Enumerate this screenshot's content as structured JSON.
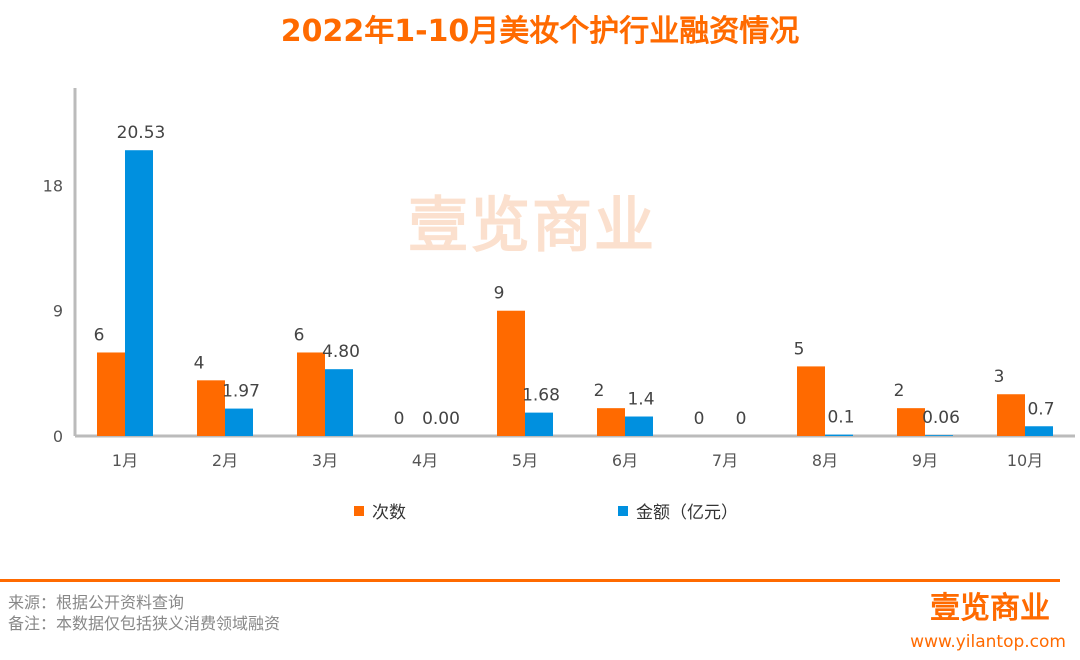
{
  "chart_data": {
    "type": "bar",
    "title": "2022年1-10月美妆个护行业融资情况",
    "categories": [
      "1月",
      "2月",
      "3月",
      "4月",
      "5月",
      "6月",
      "7月",
      "8月",
      "9月",
      "10月"
    ],
    "series": [
      {
        "name": "次数",
        "color": "#ff6a00",
        "values": [
          6,
          4,
          6,
          0,
          9,
          2,
          0,
          5,
          2,
          3
        ],
        "labels": [
          "6",
          "4",
          "6",
          "0",
          "9",
          "2",
          "0",
          "5",
          "2",
          "3"
        ]
      },
      {
        "name": "金额（亿元）",
        "color": "#0090df",
        "values": [
          20.53,
          1.97,
          4.8,
          0.0,
          1.68,
          1.4,
          0,
          0.1,
          0.06,
          0.7
        ],
        "labels": [
          "20.53",
          "1.97",
          "4.80",
          "0.00",
          "1.68",
          "1.4",
          "0",
          "0.1",
          "0.06",
          "0.7"
        ]
      }
    ],
    "yticks": [
      "0",
      "9",
      "18"
    ],
    "ylim": [
      0,
      25
    ],
    "grid": false,
    "legend_position": "bottom"
  },
  "footer": {
    "source": "来源：根据公开资料查询",
    "note": "备注：本数据仅包括狭义消费领域融资",
    "logo": "壹览商业",
    "url": "www.yilantop.com"
  },
  "watermark": "壹览商业"
}
